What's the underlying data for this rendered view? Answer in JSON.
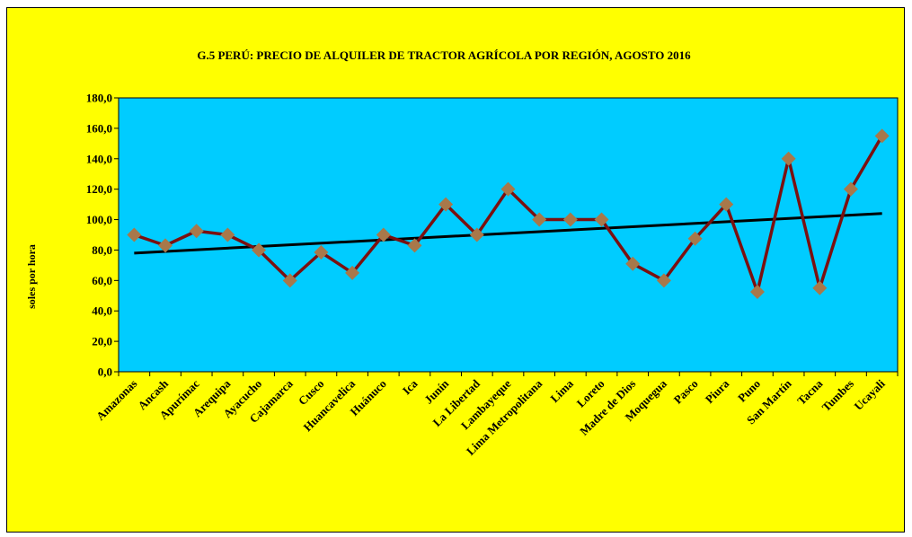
{
  "chart_data": {
    "type": "line",
    "title": "G.5 PERÚ: PRECIO DE ALQUILER DE TRACTOR AGRÍCOLA POR REGIÓN, AGOSTO 2016",
    "ylabel": "soles por hora",
    "xlabel": "",
    "ylim": [
      0,
      180
    ],
    "yticks": [
      0,
      20,
      40,
      60,
      80,
      100,
      120,
      140,
      160,
      180
    ],
    "ytick_labels": [
      "0,0",
      "20,0",
      "40,0",
      "60,0",
      "80,0",
      "100,0",
      "120,0",
      "140,0",
      "160,0",
      "180,0"
    ],
    "categories": [
      "Amazonas",
      "Ancash",
      "Apurímac",
      "Arequipa",
      "Ayacucho",
      "Cajamarca",
      "Cusco",
      "Huancavelica",
      "Huánuco",
      "Ica",
      "Junín",
      "La Libertad",
      "Lambayeque",
      "Lima Metropolitana",
      "Lima",
      "Loreto",
      "Madre de Dios",
      "Moquegua",
      "Pasco",
      "Piura",
      "Puno",
      "San Martín",
      "Tacna",
      "Tumbes",
      "Ucayali"
    ],
    "series": [
      {
        "values": [
          90,
          83,
          92.5,
          90,
          80,
          60,
          78.5,
          65,
          90,
          83,
          110,
          90,
          120,
          100,
          100,
          100,
          71,
          60,
          87.5,
          110,
          52.5,
          140,
          55,
          120,
          155
        ],
        "line_color": "#7b1010",
        "marker_color": "#a8784a",
        "marker": "diamond"
      }
    ],
    "trendline": {
      "type": "linear",
      "start": 78,
      "end": 104,
      "color": "#000000"
    },
    "plot_background": "#00ccff",
    "chart_background": "#ffff00",
    "grid": false
  }
}
